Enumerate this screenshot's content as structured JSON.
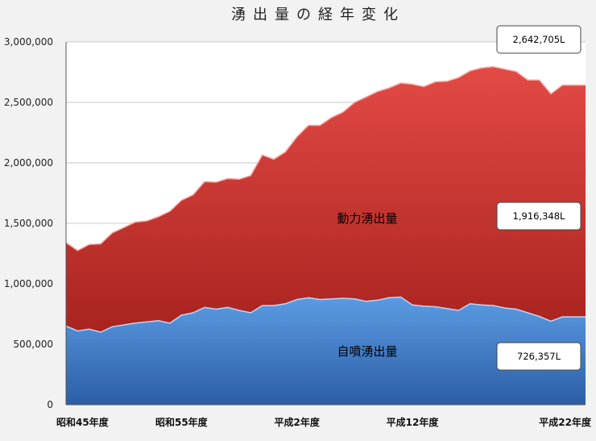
{
  "chart_data": {
    "type": "area",
    "stacked": true,
    "title": "湧出量の経年変化",
    "xlabel": "",
    "ylabel": "",
    "ylim": [
      0,
      3000000
    ],
    "y_ticks": [
      "0",
      "500,000",
      "1,000,000",
      "1,500,000",
      "2,000,000",
      "2,500,000",
      "3,000,000"
    ],
    "x_tick_labels": [
      "昭和45年度",
      "昭和55年度",
      "平成2年度",
      "平成12年度",
      "平成22年度"
    ],
    "grid": true,
    "x": [
      1970,
      1971,
      1972,
      1973,
      1974,
      1975,
      1976,
      1977,
      1978,
      1979,
      1980,
      1981,
      1982,
      1983,
      1984,
      1985,
      1986,
      1987,
      1988,
      1989,
      1990,
      1991,
      1992,
      1993,
      1994,
      1995,
      1996,
      1997,
      1998,
      1999,
      2000,
      2001,
      2002,
      2003,
      2004,
      2005,
      2006,
      2007,
      2008,
      2009,
      2010,
      2011,
      2012,
      2013,
      2014,
      2015
    ],
    "series": [
      {
        "name": "自噴湧出量",
        "color": "#3f7fd4",
        "values": [
          650000,
          610000,
          625000,
          600000,
          645000,
          660000,
          675000,
          685000,
          695000,
          675000,
          740000,
          760000,
          805000,
          790000,
          805000,
          780000,
          760000,
          820000,
          820000,
          835000,
          870000,
          885000,
          870000,
          875000,
          880000,
          875000,
          855000,
          865000,
          885000,
          890000,
          825000,
          815000,
          810000,
          795000,
          780000,
          835000,
          825000,
          820000,
          800000,
          790000,
          760000,
          730000,
          690000,
          726357,
          726357,
          726357
        ]
      },
      {
        "name": "動力湧出量",
        "color": "#d63e3a",
        "values": [
          690000,
          665000,
          700000,
          730000,
          775000,
          805000,
          835000,
          835000,
          860000,
          925000,
          950000,
          975000,
          1040000,
          1050000,
          1065000,
          1085000,
          1135000,
          1245000,
          1210000,
          1255000,
          1345000,
          1425000,
          1440000,
          1500000,
          1540000,
          1625000,
          1690000,
          1725000,
          1735000,
          1770000,
          1825000,
          1815000,
          1860000,
          1880000,
          1925000,
          1925000,
          1960000,
          1975000,
          1975000,
          1965000,
          1925000,
          1955000,
          1880000,
          1916348,
          1916348,
          1916348
        ]
      }
    ],
    "annotations": [
      {
        "text": "2,642,705L",
        "refers_to": "total"
      },
      {
        "text": "1,916,348L",
        "refers_to": "動力湧出量"
      },
      {
        "text": "726,357L",
        "refers_to": "自噴湧出量"
      }
    ]
  }
}
